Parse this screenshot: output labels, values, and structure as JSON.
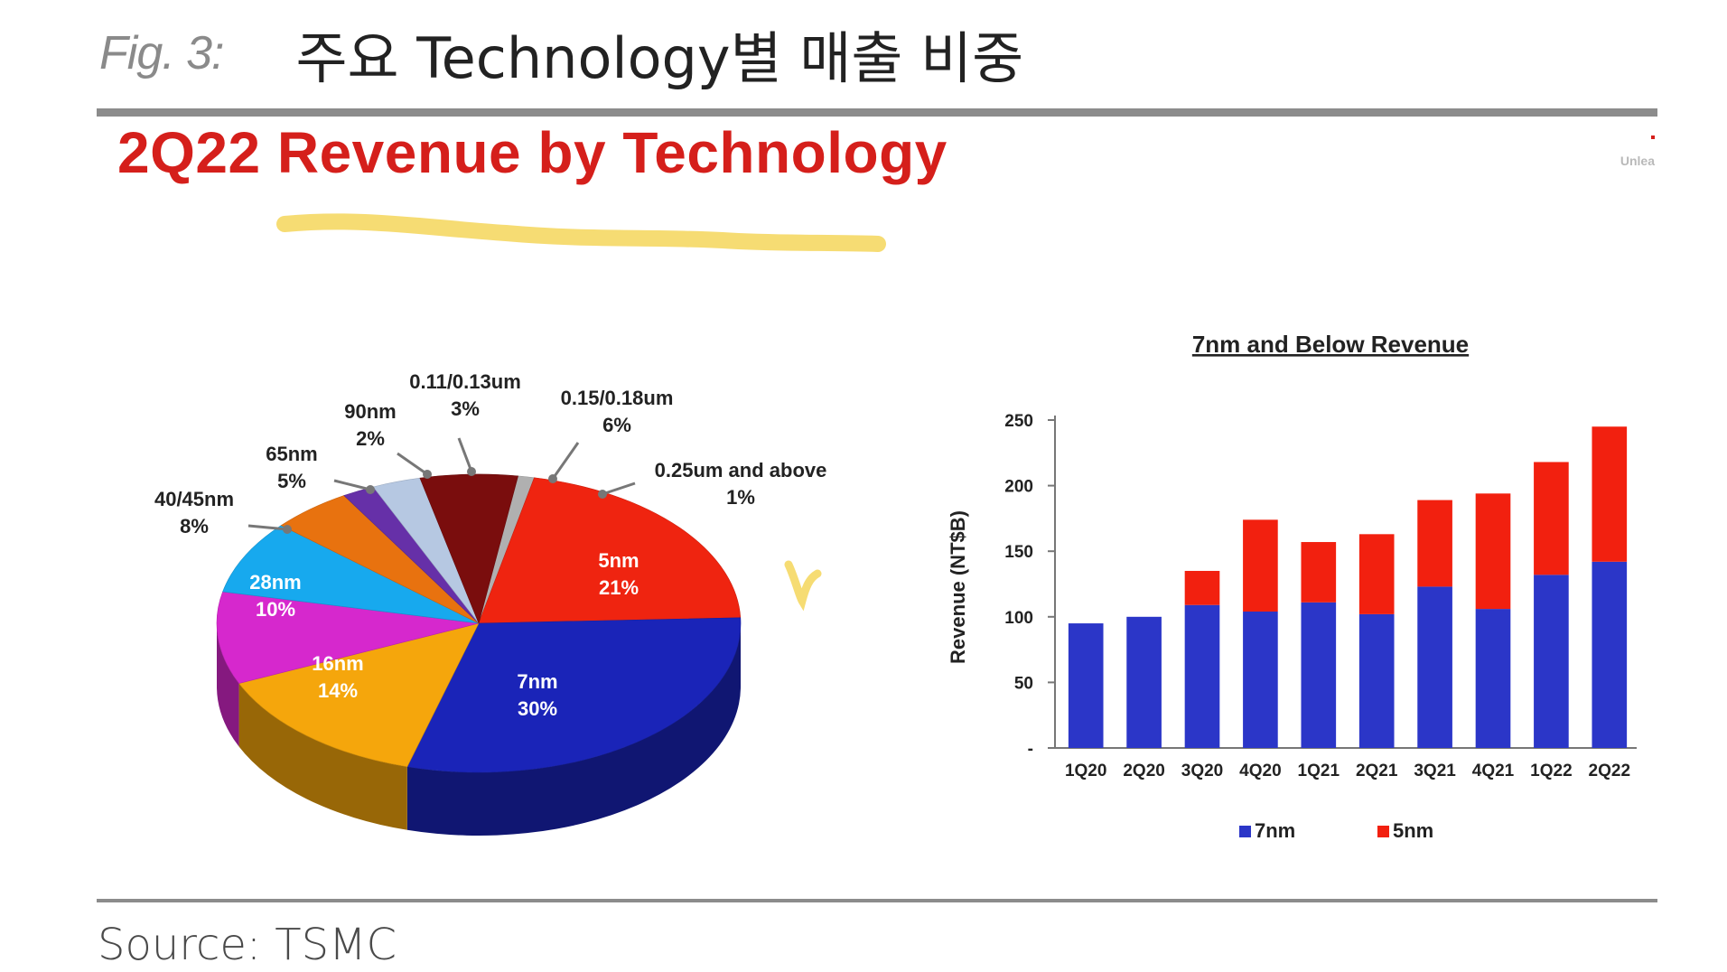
{
  "figure": {
    "label": "Fig. 3:",
    "title": "주요 Technology별 매출 비중",
    "source": "Source: TSMC"
  },
  "slide": {
    "title": "2Q22 Revenue by Technology",
    "corner_text": "Unlea"
  },
  "colors": {
    "title_red": "#d51f1b",
    "bar_7nm": "#2b36c8",
    "bar_5nm": "#f2200f",
    "highlight": "#f4d65a"
  },
  "chart_data": [
    {
      "type": "pie",
      "title": "",
      "slices": [
        {
          "label": "5nm",
          "value": 21,
          "value_label": "21%",
          "color": "#ef2410",
          "label_inside": true
        },
        {
          "label": "7nm",
          "value": 30,
          "value_label": "30%",
          "color": "#1a24b8",
          "label_inside": true
        },
        {
          "label": "16nm",
          "value": 14,
          "value_label": "14%",
          "color": "#f5a60c",
          "label_inside": true
        },
        {
          "label": "28nm",
          "value": 10,
          "value_label": "10%",
          "color": "#d628cd",
          "label_inside": true
        },
        {
          "label": "40/45nm",
          "value": 8,
          "value_label": "8%",
          "color": "#17a9ee",
          "label_inside": false
        },
        {
          "label": "65nm",
          "value": 5,
          "value_label": "5%",
          "color": "#e8720f",
          "label_inside": false
        },
        {
          "label": "90nm",
          "value": 2,
          "value_label": "2%",
          "color": "#6630a8",
          "label_inside": false
        },
        {
          "label": "0.11/0.13um",
          "value": 3,
          "value_label": "3%",
          "color": "#b6c8e2",
          "label_inside": false
        },
        {
          "label": "0.15/0.18um",
          "value": 6,
          "value_label": "6%",
          "color": "#7a0d0d",
          "label_inside": false
        },
        {
          "label": "0.25um and above",
          "value": 1,
          "value_label": "1%",
          "color": "#b0b0b0",
          "label_inside": false
        }
      ]
    },
    {
      "type": "bar",
      "stacked": true,
      "title": "7nm and Below Revenue",
      "ylabel": "Revenue (NT$B)",
      "xlabel": "",
      "ylim": [
        0,
        250
      ],
      "yticks": [
        0,
        50,
        100,
        150,
        200,
        250
      ],
      "ytick_labels": [
        "-",
        "50",
        "100",
        "150",
        "200",
        "250"
      ],
      "categories": [
        "1Q20",
        "2Q20",
        "3Q20",
        "4Q20",
        "1Q21",
        "2Q21",
        "3Q21",
        "4Q21",
        "1Q22",
        "2Q22"
      ],
      "series": [
        {
          "name": "7nm",
          "color": "#2b36c8",
          "values": [
            95,
            100,
            109,
            104,
            111,
            102,
            123,
            106,
            132,
            142
          ]
        },
        {
          "name": "5nm",
          "color": "#f2200f",
          "values": [
            0,
            0,
            26,
            70,
            46,
            61,
            66,
            88,
            86,
            103
          ]
        }
      ],
      "legend": "bottom",
      "grid": false
    }
  ]
}
